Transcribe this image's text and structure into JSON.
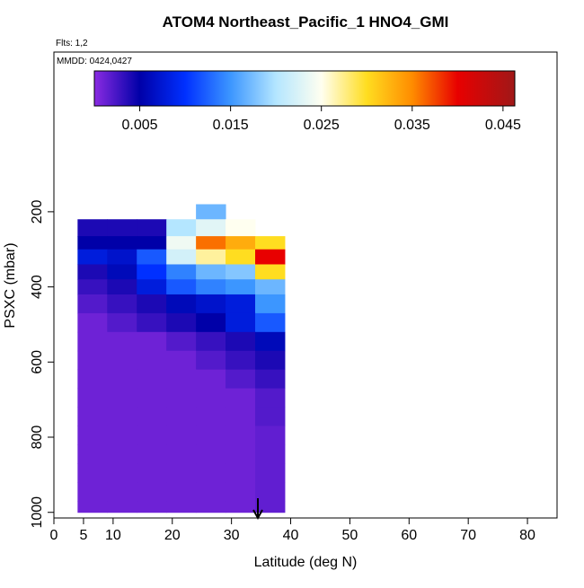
{
  "chart_data": {
    "type": "heatmap",
    "title": "ATOM4 Northeast_Pacific_1 HNO4_GMI",
    "subtitle": "Flts: 1,2",
    "annotation": "MMDD: 0424,0427",
    "x_label": "Latitude (deg N)",
    "y_label": "PSXC (mbar)",
    "xlim": [
      0,
      85
    ],
    "xticks": [
      0,
      5,
      10,
      20,
      30,
      40,
      50,
      60,
      70,
      80
    ],
    "ylim": [
      1015,
      -225
    ],
    "yticks": [
      200,
      400,
      600,
      800,
      1000
    ],
    "clim": [
      0,
      0.0463
    ],
    "cticks": [
      0.005,
      0.015,
      0.025,
      0.035,
      0.045
    ],
    "colorscale": [
      [
        0,
        "#8a2be2"
      ],
      [
        0.005,
        "#0000a8"
      ],
      [
        0.01,
        "#0030ff"
      ],
      [
        0.015,
        "#3c96ff"
      ],
      [
        0.02,
        "#b4e6ff"
      ],
      [
        0.025,
        "#fffff0"
      ],
      [
        0.03,
        "#ffdd20"
      ],
      [
        0.035,
        "#ff8c00"
      ],
      [
        0.04,
        "#e80000"
      ],
      [
        0.0463,
        "#a01818"
      ]
    ],
    "x_edges": [
      4,
      9,
      14,
      19,
      24,
      29,
      34,
      39
    ],
    "y_edges": [
      180,
      220,
      265,
      300,
      340,
      380,
      420,
      470,
      520,
      570,
      620,
      670,
      720,
      770,
      820,
      870,
      920,
      970,
      1000
    ],
    "z": [
      [
        null,
        null,
        null,
        null,
        0.017,
        null,
        null
      ],
      [
        0.004,
        0.004,
        0.004,
        0.02,
        0.023,
        0.025,
        null
      ],
      [
        0.005,
        0.005,
        0.005,
        0.024,
        0.036,
        0.033,
        0.03
      ],
      [
        0.008,
        0.007,
        0.012,
        0.022,
        0.027,
        0.03,
        0.04
      ],
      [
        0.004,
        0.006,
        0.01,
        0.014,
        0.017,
        0.018,
        0.03
      ],
      [
        0.003,
        0.004,
        0.008,
        0.012,
        0.014,
        0.015,
        0.017
      ],
      [
        0.002,
        0.003,
        0.004,
        0.006,
        0.007,
        0.008,
        0.015
      ],
      [
        0.001,
        0.002,
        0.003,
        0.004,
        0.005,
        0.008,
        0.012
      ],
      [
        0.001,
        0.001,
        0.001,
        0.002,
        0.003,
        0.004,
        0.006
      ],
      [
        0.001,
        0.001,
        0.001,
        0.001,
        0.002,
        0.003,
        0.004
      ],
      [
        0.001,
        0.001,
        0.001,
        0.001,
        0.001,
        0.002,
        0.003
      ],
      [
        0.001,
        0.001,
        0.001,
        0.001,
        0.001,
        0.001,
        0.002
      ],
      [
        0.001,
        0.001,
        0.001,
        0.001,
        0.001,
        0.001,
        0.002
      ],
      [
        0.001,
        0.001,
        0.001,
        0.001,
        0.001,
        0.001,
        0.0015
      ],
      [
        0.001,
        0.001,
        0.001,
        0.001,
        0.001,
        0.001,
        0.0015
      ],
      [
        0.001,
        0.001,
        0.001,
        0.001,
        0.001,
        0.001,
        0.0015
      ],
      [
        0.001,
        0.001,
        0.001,
        0.001,
        0.001,
        0.001,
        0.0015
      ],
      [
        0.001,
        0.001,
        0.001,
        0.001,
        0.001,
        0.001,
        0.0015
      ]
    ]
  }
}
